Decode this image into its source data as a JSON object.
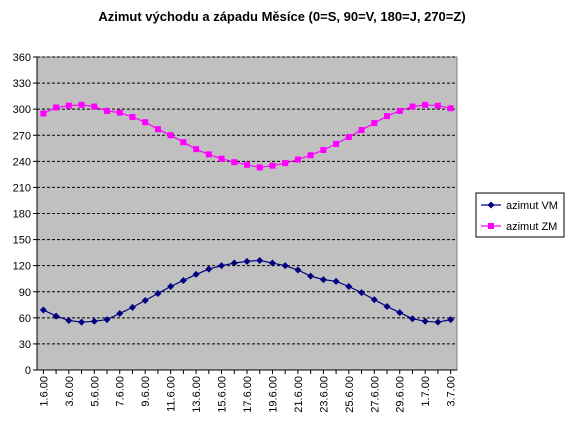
{
  "chart_data": {
    "type": "line",
    "title": "Azimut východu a západu Měsíce (0=S, 90=V, 180=J, 270=Z)",
    "xlabel": "",
    "ylabel": "",
    "ylim": [
      0,
      360
    ],
    "yticks": [
      "0",
      "30",
      "60",
      "90",
      "120",
      "150",
      "180",
      "210",
      "240",
      "270",
      "300",
      "330",
      "360"
    ],
    "xtick_labels": [
      "1.6.00",
      "3.6.00",
      "5.6.00",
      "7.6.00",
      "9.6.00",
      "11.6.00",
      "13.6.00",
      "15.6.00",
      "17.6.00",
      "19.6.00",
      "21.6.00",
      "23.6.00",
      "25.6.00",
      "27.6.00",
      "29.6.00",
      "1.7.00",
      "3.7.00"
    ],
    "x": [
      "1.6.00",
      "2.6.00",
      "3.6.00",
      "4.6.00",
      "5.6.00",
      "6.6.00",
      "7.6.00",
      "8.6.00",
      "9.6.00",
      "10.6.00",
      "11.6.00",
      "12.6.00",
      "13.6.00",
      "14.6.00",
      "15.6.00",
      "16.6.00",
      "17.6.00",
      "18.6.00",
      "19.6.00",
      "20.6.00",
      "21.6.00",
      "22.6.00",
      "23.6.00",
      "24.6.00",
      "25.6.00",
      "26.6.00",
      "27.6.00",
      "28.6.00",
      "29.6.00",
      "30.6.00",
      "1.7.00",
      "2.7.00",
      "3.7.00"
    ],
    "grid": "horizontal",
    "plot_background": "#c0c0c0",
    "legend_position": "right",
    "series": [
      {
        "name": "azimut VM",
        "color": "#000080",
        "marker": "diamond",
        "values": [
          69,
          62,
          57,
          55,
          56,
          58,
          65,
          72,
          80,
          88,
          96,
          103,
          110,
          116,
          120,
          123,
          125,
          126,
          123,
          120,
          115,
          108,
          104,
          102,
          96,
          89,
          81,
          73,
          66,
          59,
          56,
          55,
          58
        ]
      },
      {
        "name": "azimut ZM",
        "color": "#ff00ff",
        "marker": "square",
        "values": [
          295,
          302,
          304,
          305,
          303,
          298,
          296,
          291,
          285,
          277,
          270,
          262,
          254,
          248,
          243,
          239,
          236,
          233,
          235,
          238,
          242,
          247,
          253,
          260,
          268,
          276,
          284,
          292,
          298,
          303,
          305,
          304,
          301
        ]
      }
    ]
  }
}
